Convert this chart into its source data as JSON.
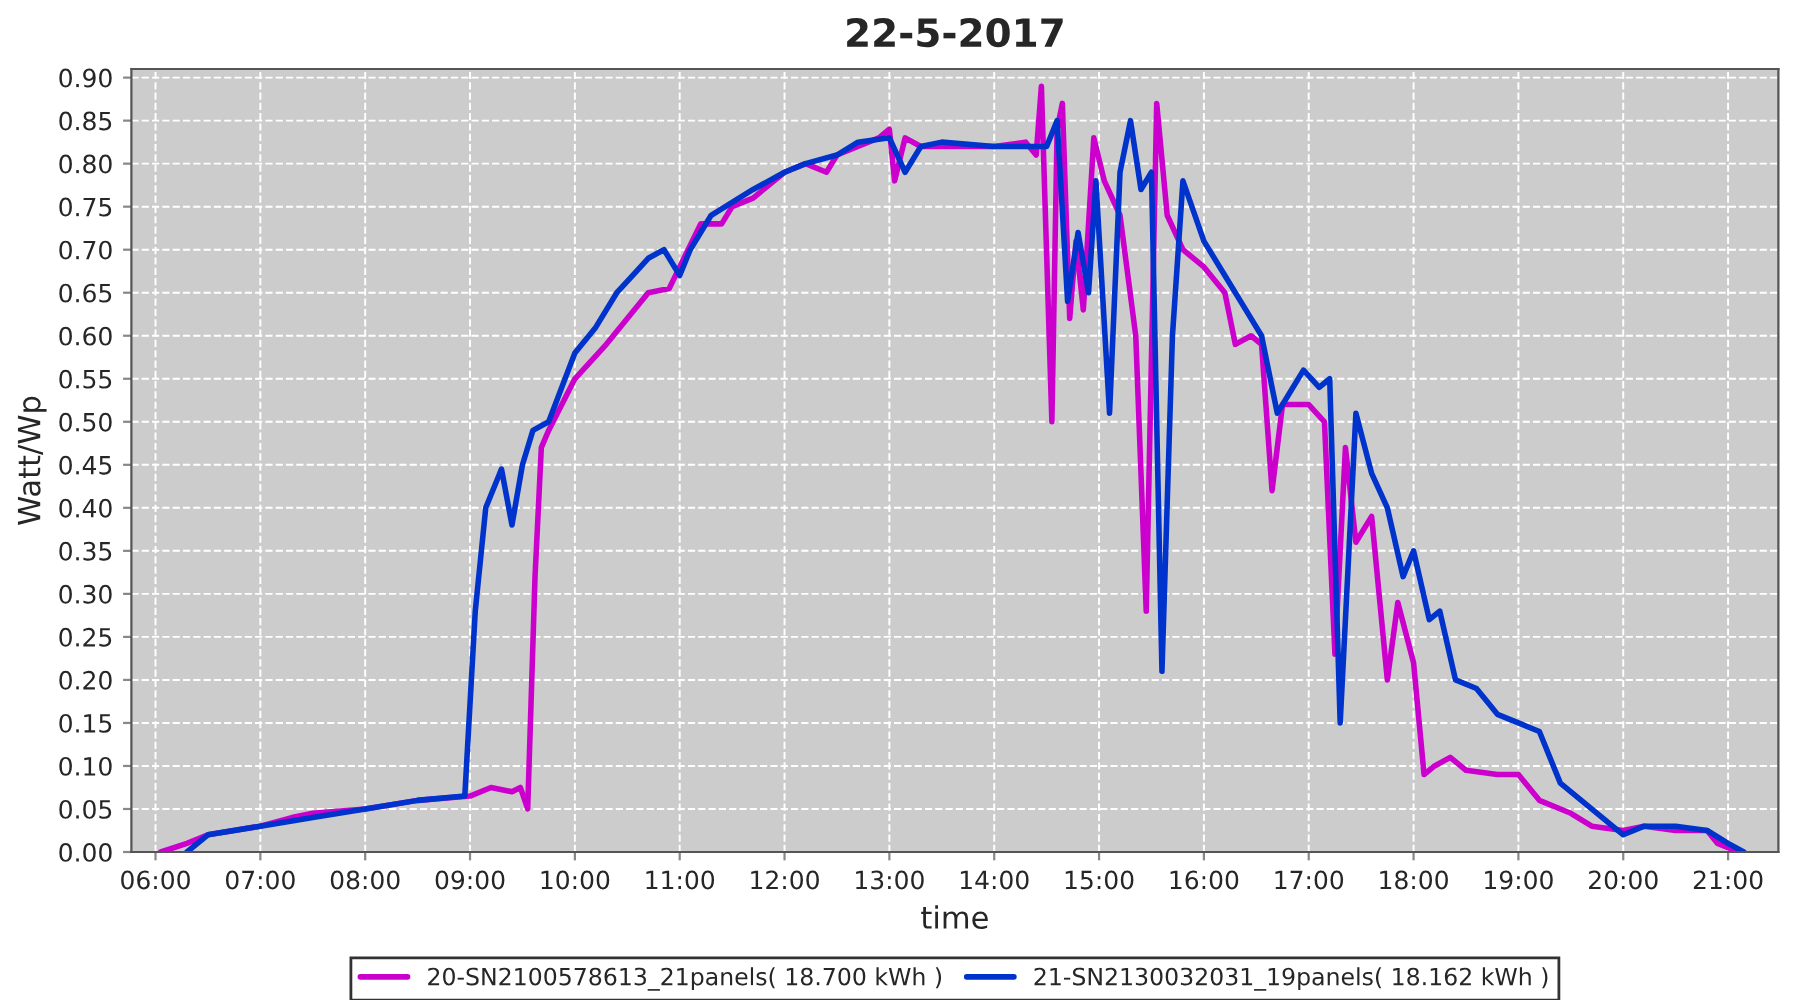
{
  "chart_data": {
    "type": "line",
    "title": "22-5-2017",
    "xlabel": "time",
    "ylabel": "Watt/Wp",
    "xlim": [
      5.77,
      21.48
    ],
    "ylim": [
      0,
      0.91
    ],
    "xticks": [
      {
        "value": 6,
        "label": "06:00"
      },
      {
        "value": 7,
        "label": "07:00"
      },
      {
        "value": 8,
        "label": "08:00"
      },
      {
        "value": 9,
        "label": "09:00"
      },
      {
        "value": 10,
        "label": "10:00"
      },
      {
        "value": 11,
        "label": "11:00"
      },
      {
        "value": 12,
        "label": "12:00"
      },
      {
        "value": 13,
        "label": "13:00"
      },
      {
        "value": 14,
        "label": "14:00"
      },
      {
        "value": 15,
        "label": "15:00"
      },
      {
        "value": 16,
        "label": "16:00"
      },
      {
        "value": 17,
        "label": "17:00"
      },
      {
        "value": 18,
        "label": "18:00"
      },
      {
        "value": 19,
        "label": "19:00"
      },
      {
        "value": 20,
        "label": "20:00"
      },
      {
        "value": 21,
        "label": "21:00"
      }
    ],
    "yticks": [
      {
        "value": 0,
        "label": "0.00"
      },
      {
        "value": 0.05,
        "label": "0.05"
      },
      {
        "value": 0.1,
        "label": "0.10"
      },
      {
        "value": 0.15,
        "label": "0.15"
      },
      {
        "value": 0.2,
        "label": "0.20"
      },
      {
        "value": 0.25,
        "label": "0.25"
      },
      {
        "value": 0.3,
        "label": "0.30"
      },
      {
        "value": 0.35,
        "label": "0.35"
      },
      {
        "value": 0.4,
        "label": "0.40"
      },
      {
        "value": 0.45,
        "label": "0.45"
      },
      {
        "value": 0.5,
        "label": "0.50"
      },
      {
        "value": 0.55,
        "label": "0.55"
      },
      {
        "value": 0.6,
        "label": "0.60"
      },
      {
        "value": 0.65,
        "label": "0.65"
      },
      {
        "value": 0.7,
        "label": "0.70"
      },
      {
        "value": 0.75,
        "label": "0.75"
      },
      {
        "value": 0.8,
        "label": "0.80"
      },
      {
        "value": 0.85,
        "label": "0.85"
      },
      {
        "value": 0.9,
        "label": "0.90"
      }
    ],
    "grid": true,
    "legend": "bottom",
    "marker": "none",
    "line_style": "solid",
    "series": [
      {
        "name": "20-SN2100578613_21panels( 18.700 kWh )",
        "color": "#cc00cc",
        "x": [
          6.05,
          6.3,
          6.5,
          7.0,
          7.3,
          7.5,
          8.0,
          8.5,
          9.0,
          9.2,
          9.4,
          9.48,
          9.55,
          9.62,
          9.68,
          9.75,
          10.0,
          10.3,
          10.5,
          10.7,
          10.9,
          11.0,
          11.2,
          11.4,
          11.5,
          11.7,
          12.0,
          12.2,
          12.4,
          12.5,
          12.7,
          12.9,
          13.0,
          13.05,
          13.15,
          13.3,
          13.5,
          14.0,
          14.3,
          14.4,
          14.45,
          14.55,
          14.6,
          14.65,
          14.72,
          14.78,
          14.85,
          14.95,
          15.05,
          15.2,
          15.35,
          15.45,
          15.55,
          15.65,
          15.8,
          16.0,
          16.2,
          16.3,
          16.45,
          16.55,
          16.65,
          16.75,
          16.85,
          17.0,
          17.15,
          17.25,
          17.35,
          17.45,
          17.6,
          17.75,
          17.85,
          18.0,
          18.1,
          18.2,
          18.35,
          18.5,
          18.8,
          19.0,
          19.2,
          19.5,
          19.7,
          20.0,
          20.2,
          20.5,
          20.8,
          20.9,
          21.1
        ],
        "values": [
          0.0,
          0.01,
          0.02,
          0.03,
          0.04,
          0.045,
          0.05,
          0.06,
          0.065,
          0.075,
          0.07,
          0.075,
          0.05,
          0.32,
          0.47,
          0.49,
          0.55,
          0.59,
          0.62,
          0.65,
          0.655,
          0.68,
          0.73,
          0.73,
          0.75,
          0.76,
          0.79,
          0.8,
          0.79,
          0.81,
          0.82,
          0.83,
          0.84,
          0.78,
          0.83,
          0.82,
          0.82,
          0.82,
          0.825,
          0.81,
          0.89,
          0.5,
          0.84,
          0.87,
          0.62,
          0.71,
          0.63,
          0.83,
          0.78,
          0.74,
          0.6,
          0.28,
          0.87,
          0.74,
          0.7,
          0.68,
          0.65,
          0.59,
          0.6,
          0.59,
          0.42,
          0.52,
          0.52,
          0.52,
          0.5,
          0.23,
          0.47,
          0.36,
          0.39,
          0.2,
          0.29,
          0.22,
          0.09,
          0.1,
          0.11,
          0.095,
          0.09,
          0.09,
          0.06,
          0.045,
          0.03,
          0.025,
          0.03,
          0.025,
          0.025,
          0.01,
          0.0
        ]
      },
      {
        "name": "21-SN2130032031_19panels( 18.162 kWh )",
        "color": "#0033cc",
        "x": [
          6.3,
          6.5,
          7.0,
          7.5,
          8.0,
          8.5,
          8.95,
          9.05,
          9.15,
          9.25,
          9.3,
          9.4,
          9.5,
          9.6,
          9.75,
          10.0,
          10.2,
          10.4,
          10.55,
          10.7,
          10.85,
          11.0,
          11.1,
          11.3,
          11.5,
          11.7,
          12.0,
          12.2,
          12.5,
          12.7,
          13.0,
          13.15,
          13.3,
          13.5,
          14.0,
          14.3,
          14.5,
          14.6,
          14.7,
          14.8,
          14.9,
          14.97,
          15.1,
          15.2,
          15.3,
          15.4,
          15.5,
          15.6,
          15.7,
          15.8,
          16.0,
          16.2,
          16.4,
          16.55,
          16.7,
          16.8,
          16.95,
          17.1,
          17.2,
          17.3,
          17.45,
          17.6,
          17.75,
          17.9,
          18.0,
          18.15,
          18.25,
          18.4,
          18.6,
          18.8,
          19.0,
          19.2,
          19.4,
          19.6,
          19.8,
          20.0,
          20.2,
          20.5,
          20.8,
          21.0,
          21.15
        ],
        "values": [
          0.0,
          0.02,
          0.03,
          0.04,
          0.05,
          0.06,
          0.065,
          0.28,
          0.4,
          0.43,
          0.445,
          0.38,
          0.45,
          0.49,
          0.5,
          0.58,
          0.61,
          0.65,
          0.67,
          0.69,
          0.7,
          0.67,
          0.7,
          0.74,
          0.755,
          0.77,
          0.79,
          0.8,
          0.81,
          0.825,
          0.83,
          0.79,
          0.82,
          0.825,
          0.82,
          0.82,
          0.82,
          0.85,
          0.64,
          0.72,
          0.65,
          0.78,
          0.51,
          0.79,
          0.85,
          0.77,
          0.79,
          0.21,
          0.6,
          0.78,
          0.71,
          0.67,
          0.63,
          0.6,
          0.51,
          0.53,
          0.56,
          0.54,
          0.55,
          0.15,
          0.51,
          0.44,
          0.4,
          0.32,
          0.35,
          0.27,
          0.28,
          0.2,
          0.19,
          0.16,
          0.15,
          0.14,
          0.08,
          0.06,
          0.04,
          0.02,
          0.03,
          0.03,
          0.025,
          0.01,
          0.0
        ]
      }
    ]
  }
}
